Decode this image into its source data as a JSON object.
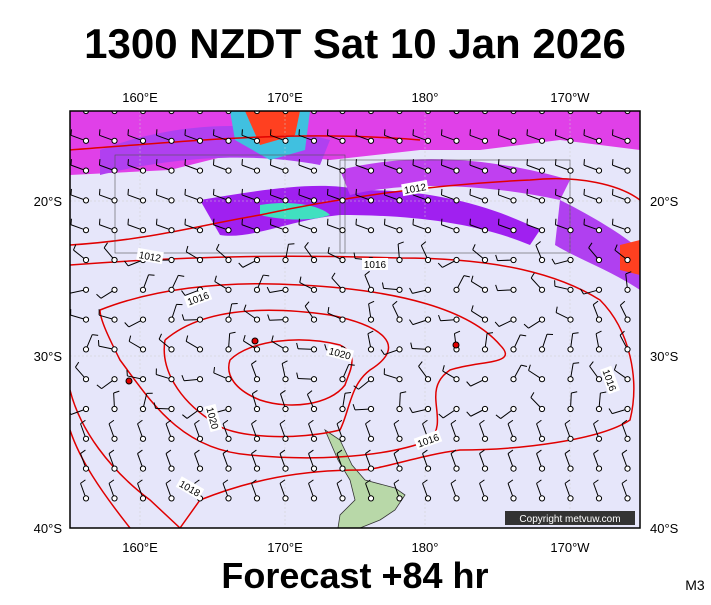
{
  "title": "1300 NZDT Sat 10 Jan 2026",
  "longitude_labels": [
    "160°E",
    "170°E",
    "180°",
    "170°W"
  ],
  "latitude_labels": [
    "20°S",
    "30°S",
    "40°S"
  ],
  "isobar_labels": [
    "1012",
    "1012",
    "1016",
    "1016",
    "1020",
    "1020",
    "1016",
    "1016",
    "1018"
  ],
  "copyright": "Copyright metvuw.com",
  "footer": "Forecast +84 hr",
  "code": "M3"
}
